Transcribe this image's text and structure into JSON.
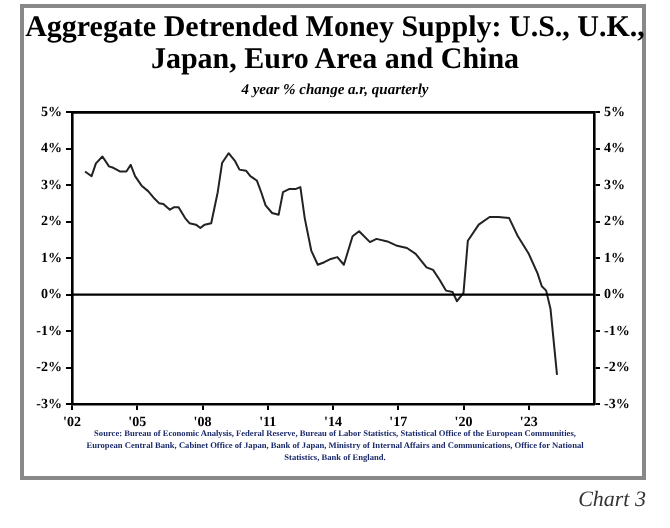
{
  "chart_data": {
    "type": "line",
    "title": "Aggregate Detrended Money Supply: U.S., U.K., Japan, Euro Area and China",
    "subtitle": "4 year % change a.r, quarterly",
    "x": [
      2002.6,
      2002.9,
      2003.1,
      2003.4,
      2003.7,
      2003.9,
      2004.2,
      2004.5,
      2004.7,
      2004.9,
      2005.2,
      2005.5,
      2005.8,
      2006.0,
      2006.2,
      2006.5,
      2006.7,
      2006.9,
      2007.2,
      2007.4,
      2007.7,
      2007.9,
      2008.1,
      2008.4,
      2008.7,
      2008.9,
      2009.2,
      2009.5,
      2009.7,
      2010.0,
      2010.2,
      2010.5,
      2010.7,
      2010.9,
      2011.2,
      2011.5,
      2011.7,
      2012.0,
      2012.3,
      2012.5,
      2012.7,
      2013.0,
      2013.3,
      2013.6,
      2013.9,
      2014.2,
      2014.5,
      2014.9,
      2015.2,
      2015.7,
      2016.0,
      2016.5,
      2016.9,
      2017.4,
      2017.8,
      2018.3,
      2018.6,
      2018.9,
      2019.2,
      2019.5,
      2019.7,
      2020.0,
      2020.2,
      2020.7,
      2021.2,
      2021.6,
      2022.1,
      2022.5,
      2023.0,
      2023.4,
      2023.6,
      2023.8,
      2024.0,
      2024.3
    ],
    "series": [
      {
        "color": "#222222",
        "values": [
          3.38,
          3.25,
          3.6,
          3.79,
          3.52,
          3.48,
          3.38,
          3.38,
          3.56,
          3.25,
          2.99,
          2.84,
          2.63,
          2.51,
          2.49,
          2.33,
          2.4,
          2.4,
          2.1,
          1.96,
          1.92,
          1.83,
          1.92,
          1.96,
          2.81,
          3.61,
          3.88,
          3.66,
          3.43,
          3.4,
          3.25,
          3.13,
          2.81,
          2.45,
          2.24,
          2.19,
          2.81,
          2.9,
          2.9,
          2.95,
          2.1,
          1.21,
          0.82,
          0.89,
          0.98,
          1.03,
          0.82,
          1.6,
          1.74,
          1.44,
          1.53,
          1.46,
          1.35,
          1.28,
          1.12,
          0.75,
          0.68,
          0.41,
          0.11,
          0.07,
          -0.18,
          0.05,
          1.48,
          1.92,
          2.13,
          2.13,
          2.1,
          1.6,
          1.12,
          0.59,
          0.23,
          0.11,
          -0.39,
          -2.2
        ]
      }
    ],
    "xlim": [
      2002,
      2026
    ],
    "xticks": [
      {
        "value": 2002,
        "label": "'02"
      },
      {
        "value": 2005,
        "label": "'05"
      },
      {
        "value": 2008,
        "label": "'08"
      },
      {
        "value": 2011,
        "label": "'11"
      },
      {
        "value": 2014,
        "label": "'14"
      },
      {
        "value": 2017,
        "label": "'17"
      },
      {
        "value": 2020,
        "label": "'20"
      },
      {
        "value": 2023,
        "label": "'23"
      }
    ],
    "ylim": [
      -3,
      5
    ],
    "yticks": [
      {
        "value": -3,
        "label": "-3%"
      },
      {
        "value": -2,
        "label": "-2%"
      },
      {
        "value": -1,
        "label": "-1%"
      },
      {
        "value": 0,
        "label": "0%"
      },
      {
        "value": 1,
        "label": "1%"
      },
      {
        "value": 2,
        "label": "2%"
      },
      {
        "value": 3,
        "label": "3%"
      },
      {
        "value": 4,
        "label": "4%"
      },
      {
        "value": 5,
        "label": "5%"
      }
    ],
    "y2lim": [
      -3,
      5
    ],
    "y2ticks": [
      {
        "value": -3,
        "label": "-3%"
      },
      {
        "value": -2,
        "label": "-2%"
      },
      {
        "value": -1,
        "label": "-1%"
      },
      {
        "value": 0,
        "label": "0%"
      },
      {
        "value": 1,
        "label": "1%"
      },
      {
        "value": 2,
        "label": "2%"
      },
      {
        "value": 3,
        "label": "3%"
      },
      {
        "value": 4,
        "label": "4%"
      },
      {
        "value": 5,
        "label": "5%"
      }
    ],
    "ref_lines": [
      {
        "axis": "y",
        "value": 0,
        "color": "#000000"
      }
    ],
    "grid": false,
    "legend": false,
    "marker": "none",
    "line_style": "solid",
    "annotations": [
      "Source: Bureau of Economic Analysis, Federal Reserve, Bureau of Labor Statistics, Statistical Office of the European Communities, European Central Bank, Cabinet Office of Japan, Bank of Japan, Ministry of Internal Affairs and Communications, Office for National Statistics, Bank of England.",
      "Chart 3"
    ]
  }
}
